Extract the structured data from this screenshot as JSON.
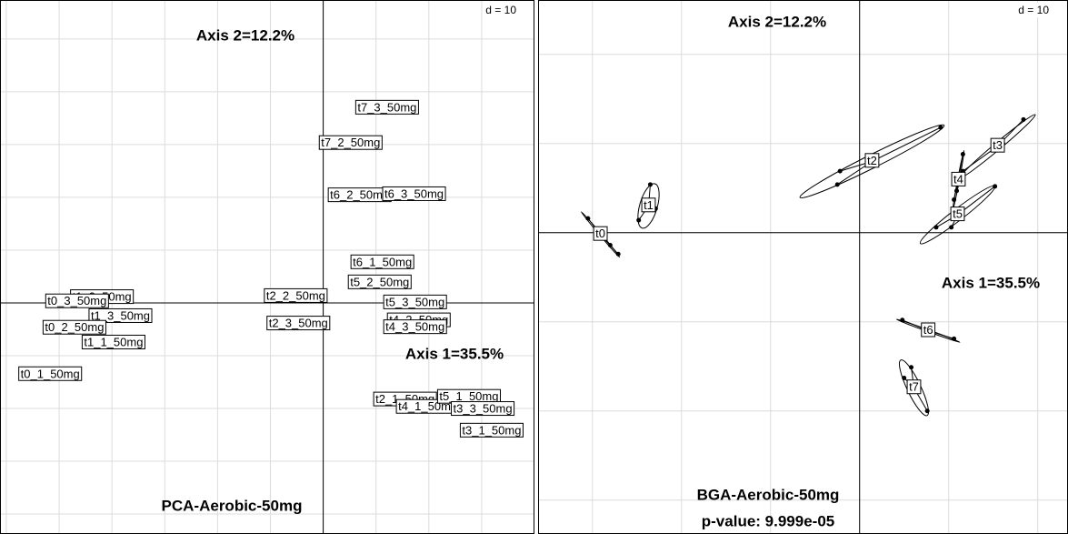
{
  "chart_data": [
    {
      "type": "label-scatter",
      "title": "PCA-Aerobic-50mg",
      "x_axis_label": "Axis 1=35.5%",
      "y_axis_label": "Axis 2=12.2%",
      "grid_label": "d = 10",
      "grid_step": 10,
      "xlim": [
        -61.2,
        40.0
      ],
      "ylim": [
        -43.8,
        57.4
      ],
      "labels": [
        "t7_3_50mg",
        "t7_2_50mg",
        "t6_2_50mg",
        "t6_3_50mg",
        "t6_1_50mg",
        "t5_2_50mg",
        "t4_2_50mg",
        "t5_3_50mg",
        "t4_3_50mg",
        "t2_2_50mg",
        "t2_3_50mg",
        "t1_2_50mg",
        "t0_3_50mg",
        "t1_3_50mg",
        "t0_2_50mg",
        "t1_1_50mg",
        "t0_1_50mg",
        "t2_1_50mg",
        "t4_1_50mg",
        "t5_1_50mg",
        "t3_3_50mg",
        "t3_1_50mg"
      ],
      "x": [
        12.1,
        5.2,
        6.9,
        17.2,
        11.2,
        10.7,
        18.1,
        17.4,
        17.4,
        -5.2,
        -4.7,
        -41.9,
        -46.6,
        -38.4,
        -47.1,
        -39.7,
        -51.7,
        15.5,
        19.8,
        27.6,
        30.2,
        31.9
      ],
      "y": [
        36.9,
        30.2,
        20.3,
        20.5,
        7.6,
        3.8,
        -3.4,
        0.0,
        -4.7,
        1.2,
        -4.0,
        1.0,
        0.2,
        -2.6,
        -4.8,
        -7.6,
        -13.6,
        -18.4,
        -19.8,
        -17.9,
        -20.2,
        -24.3
      ]
    },
    {
      "type": "class-scatter",
      "title": "BGA-Aerobic-50mg",
      "subtitle": "p-value: 9.999e-05",
      "x_axis_label": "Axis 1=35.5%",
      "y_axis_label": "Axis 2=12.2%",
      "grid_label": "d = 10",
      "grid_step": 10,
      "xlim": [
        -36.1,
        23.4
      ],
      "ylim": [
        -33.8,
        26.1
      ],
      "groups": [
        {
          "name": "t0",
          "x": -29.1,
          "y": -0.2,
          "points_x": [
            -30.5,
            -28.0,
            -27.1
          ],
          "points_y": [
            1.6,
            -1.4,
            -2.4
          ]
        },
        {
          "name": "t1",
          "x": -23.7,
          "y": 3.0,
          "points_x": [
            -23.5,
            -24.8,
            -22.9
          ],
          "points_y": [
            5.4,
            1.4,
            2.7
          ]
        },
        {
          "name": "t2",
          "x": 1.4,
          "y": 8.0,
          "points_x": [
            -2.2,
            9.1,
            -2.5
          ],
          "points_y": [
            6.9,
            11.8,
            5.4
          ]
        },
        {
          "name": "t3",
          "x": 15.5,
          "y": 9.7,
          "points_x": [
            18.4,
            16.1,
            11.6
          ],
          "points_y": [
            12.7,
            10.0,
            6.9
          ]
        },
        {
          "name": "t4",
          "x": 11.1,
          "y": 5.9,
          "points_x": [
            11.6,
            10.9,
            10.6
          ],
          "points_y": [
            8.8,
            4.7,
            3.7
          ]
        },
        {
          "name": "t5",
          "x": 11.0,
          "y": 2.0,
          "points_x": [
            15.2,
            10.3,
            8.6
          ],
          "points_y": [
            5.2,
            0.6,
            0.6
          ]
        },
        {
          "name": "t6",
          "x": 7.7,
          "y": -11.0,
          "points_x": [
            4.8,
            10.6,
            7.7
          ],
          "points_y": [
            -9.8,
            -11.9,
            -11.0
          ]
        },
        {
          "name": "t7",
          "x": 6.1,
          "y": -17.4,
          "points_x": [
            5.8,
            7.6,
            5.0
          ],
          "points_y": [
            -15.1,
            -20.0,
            -16.3
          ]
        }
      ]
    }
  ]
}
